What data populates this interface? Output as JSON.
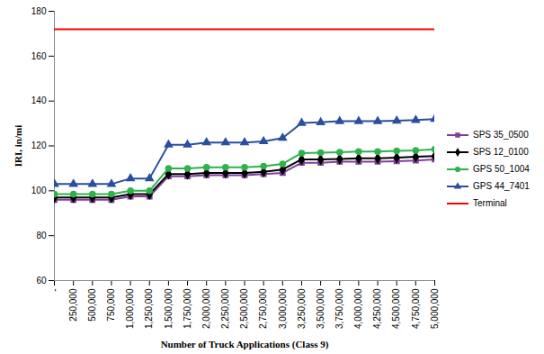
{
  "chart_data": {
    "type": "line",
    "x_label": "Number of Truck Applications (Class 9)",
    "y_label": "IRI, in/mi",
    "x": [
      0,
      250000,
      500000,
      750000,
      1000000,
      1250000,
      1500000,
      1750000,
      2000000,
      2250000,
      2500000,
      2750000,
      3000000,
      3250000,
      3500000,
      3750000,
      4000000,
      4250000,
      4500000,
      4750000,
      5000000
    ],
    "xlim": [
      0,
      5000000
    ],
    "xticks": [
      {
        "value": 0,
        "label": "-"
      },
      {
        "value": 250000,
        "label": "250,000"
      },
      {
        "value": 500000,
        "label": "500,000"
      },
      {
        "value": 750000,
        "label": "750,000"
      },
      {
        "value": 1000000,
        "label": "1,000,000"
      },
      {
        "value": 1250000,
        "label": "1,250,000"
      },
      {
        "value": 1500000,
        "label": "1,500,000"
      },
      {
        "value": 1750000,
        "label": "1,750,000"
      },
      {
        "value": 2000000,
        "label": "2,000,000"
      },
      {
        "value": 2250000,
        "label": "2,250,000"
      },
      {
        "value": 2500000,
        "label": "2,500,000"
      },
      {
        "value": 2750000,
        "label": "2,750,000"
      },
      {
        "value": 3000000,
        "label": "3,000,000"
      },
      {
        "value": 3250000,
        "label": "3,250,000"
      },
      {
        "value": 3500000,
        "label": "3,500,000"
      },
      {
        "value": 3750000,
        "label": "3,750,000"
      },
      {
        "value": 4000000,
        "label": "4,000,000"
      },
      {
        "value": 4250000,
        "label": "4,250,000"
      },
      {
        "value": 4500000,
        "label": "4,500,000"
      },
      {
        "value": 4750000,
        "label": "4,750,000"
      },
      {
        "value": 5000000,
        "label": "5,000,000"
      }
    ],
    "ylim": [
      60,
      180
    ],
    "yticks": [
      60,
      80,
      100,
      120,
      140,
      160,
      180
    ],
    "grid": false,
    "legend": "right",
    "series": [
      {
        "name": "SPS 35_0500",
        "color": "#7f3f98",
        "marker": "square",
        "values": [
          96,
          96,
          96,
          96,
          97.5,
          97.5,
          106.5,
          106.5,
          107,
          107,
          107,
          107.5,
          108,
          112.5,
          112.5,
          113,
          113,
          113,
          113.2,
          113.5,
          114
        ]
      },
      {
        "name": "SPS 12_0100",
        "color": "#000000",
        "marker": "diamond",
        "values": [
          97,
          97,
          97,
          97,
          98.5,
          98.5,
          107.5,
          107.5,
          108,
          108,
          108,
          108.5,
          109.5,
          114,
          114,
          114.2,
          114.5,
          114.5,
          114.8,
          115.2,
          115.5
        ]
      },
      {
        "name": "GPS 50_1004",
        "color": "#2eb34a",
        "marker": "circle",
        "values": [
          98.5,
          98.5,
          98.5,
          98.5,
          100,
          100,
          110,
          110,
          110.5,
          110.5,
          110.5,
          111,
          112,
          116.8,
          117,
          117.2,
          117.5,
          117.5,
          117.8,
          118,
          118.5
        ]
      },
      {
        "name": "GPS 44_7401",
        "color": "#2a4ea0",
        "marker": "triangle",
        "values": [
          103,
          103,
          103,
          103,
          105.5,
          105.5,
          120.5,
          120.5,
          121.5,
          121.5,
          121.5,
          122,
          123.5,
          130.2,
          130.5,
          131,
          131,
          131,
          131.2,
          131.5,
          132
        ]
      },
      {
        "name": "Terminal",
        "color": "#ff0000",
        "marker": "none",
        "values": [
          172,
          172,
          172,
          172,
          172,
          172,
          172,
          172,
          172,
          172,
          172,
          172,
          172,
          172,
          172,
          172,
          172,
          172,
          172,
          172,
          172
        ]
      }
    ]
  }
}
